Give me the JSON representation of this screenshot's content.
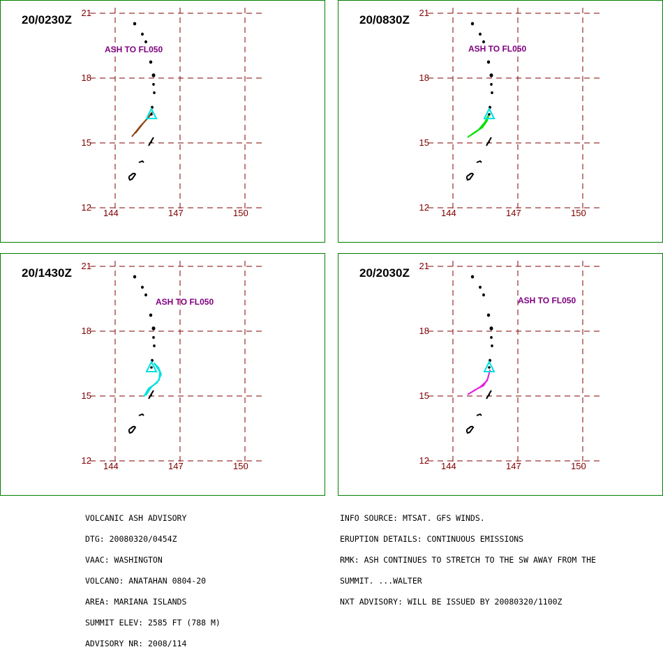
{
  "panels": [
    {
      "time": "20/0230Z",
      "ash_label": "ASH TO FL050",
      "ash_color": "#8b4513"
    },
    {
      "time": "20/0830Z",
      "ash_label": "ASH TO FL050",
      "ash_color": "#00e000"
    },
    {
      "time": "20/1430Z",
      "ash_label": "ASH TO FL050",
      "ash_color": "#00e0e0"
    },
    {
      "time": "20/2030Z",
      "ash_label": "ASH TO FL050",
      "ash_color": "#e020e0"
    }
  ],
  "axis": {
    "lat_ticks": [
      "21",
      "18",
      "15",
      "12"
    ],
    "lon_ticks": [
      "144",
      "147",
      "150"
    ]
  },
  "colors": {
    "frame": "#008000",
    "grid": "#800000",
    "label": "#800080",
    "volcano": "#00e0e0",
    "islands": "#000000"
  },
  "advisory_left": [
    "VOLCANIC ASH ADVISORY",
    "DTG: 20080320/0454Z",
    "VAAC: WASHINGTON",
    "VOLCANO: ANATAHAN 0804-20",
    "AREA: MARIANA ISLANDS",
    "SUMMIT ELEV: 2585 FT (788 M)",
    "ADVISORY NR: 2008/114"
  ],
  "advisory_right": [
    "INFO SOURCE: MTSAT. GFS WINDS.",
    "ERUPTION DETAILS: CONTINUOUS EMISSIONS",
    "RMK: ASH CONTINUES TO STRETCH TO THE SW AWAY FROM THE",
    "SUMMIT. ...WALTER",
    "NXT ADVISORY: WILL BE ISSUED BY 20080320/1100Z"
  ]
}
